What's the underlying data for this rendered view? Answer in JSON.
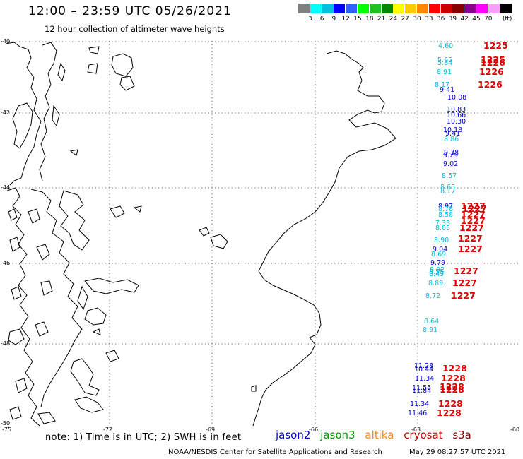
{
  "title": "12:00 – 23:59 UTC 05/26/2021",
  "subtitle": "12 hour collection of altimeter wave heights",
  "color_scale": {
    "unit": "(ft)",
    "colors": [
      "#808080",
      "#00ffff",
      "#00c0e0",
      "#0000ff",
      "#3060ff",
      "#00ff00",
      "#20c020",
      "#008800",
      "#ffff00",
      "#ffcc00",
      "#ff8800",
      "#ff0000",
      "#cc0000",
      "#880000",
      "#8b008b",
      "#ff00ff",
      "#f8a0f8",
      "#000000"
    ],
    "labels": [
      "3",
      "6",
      "9",
      "12",
      "15",
      "18",
      "21",
      "24",
      "27",
      "30",
      "33",
      "36",
      "39",
      "42",
      "45",
      "70"
    ]
  },
  "map": {
    "lat_labels": [
      "-40",
      "-42",
      "-44",
      "-46",
      "-48",
      "-50"
    ],
    "lon_labels": [
      "-75",
      "-72",
      "-69",
      "-66",
      "-63",
      "-60"
    ],
    "wave_readings": [
      {
        "text": "4.60",
        "color": "#00c0e0"
      },
      {
        "text": "5.65",
        "color": "#00c0e0"
      },
      {
        "text": "5.84",
        "color": "#00c0e0"
      },
      {
        "text": "8.91",
        "color": "#00c0e0"
      },
      {
        "text": "8.17",
        "color": "#00c0e0"
      },
      {
        "text": "9.41",
        "color": "#0000cc"
      },
      {
        "text": "10.08",
        "color": "#0000cc"
      },
      {
        "text": "10.83",
        "color": "#0000cc"
      },
      {
        "text": "10.66",
        "color": "#0000cc"
      },
      {
        "text": "10.30",
        "color": "#0000cc"
      },
      {
        "text": "10.18",
        "color": "#0000cc"
      },
      {
        "text": "9.41",
        "color": "#0000cc"
      },
      {
        "text": "8.86",
        "color": "#00c0e0"
      },
      {
        "text": "9.38",
        "color": "#0000cc"
      },
      {
        "text": "9.29",
        "color": "#0000cc"
      },
      {
        "text": "9.02",
        "color": "#0000cc"
      },
      {
        "text": "8.57",
        "color": "#00c0e0"
      },
      {
        "text": "8.65",
        "color": "#00c0e0"
      },
      {
        "text": "8.17",
        "color": "#00c0e0"
      },
      {
        "text": "8.97",
        "color": "#0000cc"
      },
      {
        "text": "8.78",
        "color": "#00c0e0"
      },
      {
        "text": "8.58",
        "color": "#00c0e0"
      },
      {
        "text": "7.33",
        "color": "#00c0e0"
      },
      {
        "text": "8.05",
        "color": "#00c0e0"
      },
      {
        "text": "8.90",
        "color": "#00c0e0"
      },
      {
        "text": "9.04",
        "color": "#0000cc"
      },
      {
        "text": "8.69",
        "color": "#00c0e0"
      },
      {
        "text": "9.79",
        "color": "#0000cc"
      },
      {
        "text": "8.92",
        "color": "#00c0e0"
      },
      {
        "text": "8.55",
        "color": "#00c0e0"
      },
      {
        "text": "8.49",
        "color": "#00c0e0"
      },
      {
        "text": "8.89",
        "color": "#00c0e0"
      },
      {
        "text": "8.72",
        "color": "#00c0e0"
      },
      {
        "text": "8.64",
        "color": "#00c0e0"
      },
      {
        "text": "8.91",
        "color": "#00c0e0"
      },
      {
        "text": "11.28",
        "color": "#0000cc"
      },
      {
        "text": "10.44",
        "color": "#0000cc"
      },
      {
        "text": "11.34",
        "color": "#0000cc"
      },
      {
        "text": "11.55",
        "color": "#0000cc"
      },
      {
        "text": "11.84",
        "color": "#0000cc"
      },
      {
        "text": "11.34",
        "color": "#0000cc"
      },
      {
        "text": "11.46",
        "color": "#0000cc"
      }
    ],
    "date_tags": [
      "1225",
      "1225",
      "1226",
      "1226",
      "1226",
      "1227",
      "1227",
      "1227",
      "1227",
      "1227",
      "1227",
      "1227",
      "1227",
      "1227",
      "1227",
      "1228",
      "1228",
      "1228",
      "1228",
      "1228",
      "1228"
    ]
  },
  "note": "note:  1) Time is in UTC;  2) SWH is in feet",
  "satellites": [
    {
      "name": "jason2",
      "color": "#0000cc"
    },
    {
      "name": "jason3",
      "color": "#009900"
    },
    {
      "name": "altika",
      "color": "#ff8800"
    },
    {
      "name": "cryosat",
      "color": "#cc0000"
    },
    {
      "name": "s3a",
      "color": "#800000"
    }
  ],
  "footer": {
    "credit": "NOAA/NESDIS Center for Satellite Applications and Research",
    "timestamp": "May 29 08:27:57 UTC 2021"
  }
}
